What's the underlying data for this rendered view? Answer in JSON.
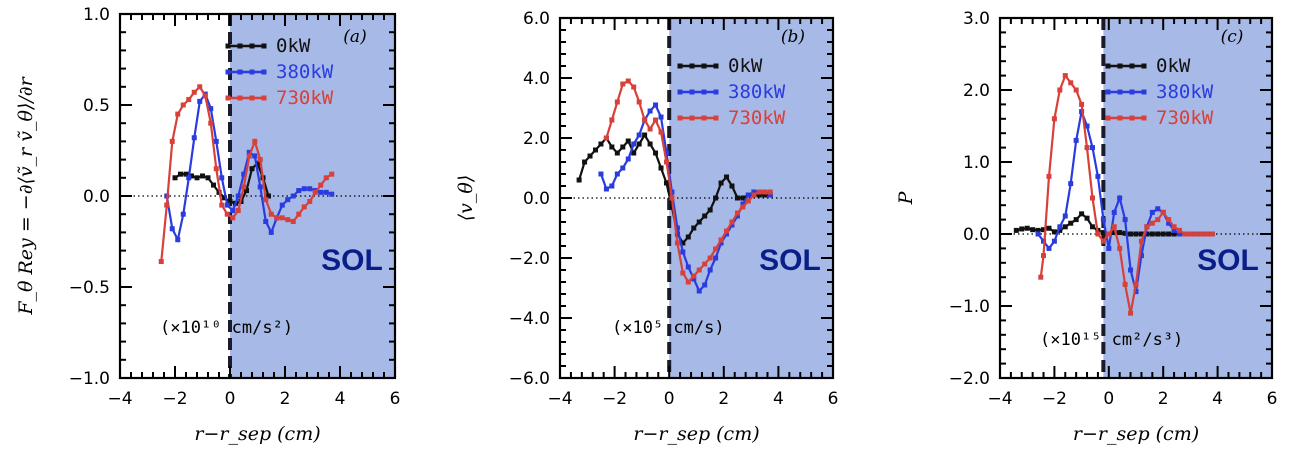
{
  "chart_data": [
    {
      "type": "line",
      "panel_label": "(a)",
      "ylabel": "F_θ Rey = −∂⟨ṽ_r ṽ_θ⟩/∂r",
      "xlabel": "r−r_sep (cm)",
      "units": "(×10¹⁰ cm/s²)",
      "region_label": "SOL",
      "xlim": [
        -4,
        6
      ],
      "ylim": [
        -1.0,
        1.0
      ],
      "xticks": [
        "−4",
        "−2",
        "0",
        "2",
        "4",
        "6"
      ],
      "yticks": [
        "1.0",
        "0.5",
        "0.0",
        "−0.5",
        "−1.0"
      ],
      "xtick_values": [
        -4,
        -2,
        0,
        2,
        4,
        6
      ],
      "ytick_values": [
        1.0,
        0.5,
        0.0,
        -0.5,
        -1.0
      ],
      "separatrix_x": 0,
      "shade_from_x": 0,
      "series": [
        {
          "name": "0kW",
          "color": "#111111",
          "x": [
            -2.0,
            -1.8,
            -1.6,
            -1.4,
            -1.2,
            -1.0,
            -0.8,
            -0.6,
            -0.4,
            -0.2,
            0.0,
            0.2,
            0.4,
            0.6,
            0.8,
            1.0,
            1.2,
            1.4
          ],
          "y": [
            0.1,
            0.12,
            0.12,
            0.11,
            0.1,
            0.11,
            0.1,
            0.06,
            0.02,
            -0.01,
            -0.03,
            -0.04,
            -0.03,
            0.03,
            0.15,
            0.18,
            0.1,
            0.0
          ]
        },
        {
          "name": "380kW",
          "color": "#2a3be0",
          "x": [
            -2.3,
            -2.1,
            -1.9,
            -1.7,
            -1.5,
            -1.3,
            -1.1,
            -0.9,
            -0.7,
            -0.5,
            -0.3,
            -0.1,
            0.1,
            0.3,
            0.5,
            0.7,
            0.9,
            1.1,
            1.3,
            1.5,
            1.7,
            1.9,
            2.1,
            2.3,
            2.5,
            2.7,
            2.9,
            3.1,
            3.3,
            3.5,
            3.7
          ],
          "y": [
            0.0,
            -0.18,
            -0.24,
            -0.1,
            0.1,
            0.32,
            0.52,
            0.56,
            0.48,
            0.3,
            0.1,
            -0.05,
            -0.08,
            0.0,
            0.12,
            0.24,
            0.22,
            0.05,
            -0.14,
            -0.2,
            -0.12,
            -0.05,
            -0.02,
            0.0,
            0.03,
            0.04,
            0.04,
            0.03,
            0.02,
            0.02,
            0.01
          ]
        },
        {
          "name": "730kW",
          "color": "#d8403a",
          "x": [
            -2.5,
            -2.3,
            -2.1,
            -1.9,
            -1.7,
            -1.5,
            -1.3,
            -1.1,
            -0.9,
            -0.7,
            -0.5,
            -0.3,
            -0.1,
            0.1,
            0.3,
            0.5,
            0.7,
            0.9,
            1.1,
            1.3,
            1.5,
            1.7,
            1.9,
            2.1,
            2.3,
            2.5,
            2.7,
            2.9,
            3.1,
            3.3,
            3.5,
            3.7
          ],
          "y": [
            -0.36,
            -0.05,
            0.3,
            0.45,
            0.5,
            0.53,
            0.57,
            0.6,
            0.55,
            0.4,
            0.15,
            -0.05,
            -0.1,
            -0.12,
            -0.08,
            0.05,
            0.22,
            0.3,
            0.2,
            -0.02,
            -0.1,
            -0.12,
            -0.12,
            -0.13,
            -0.14,
            -0.1,
            -0.06,
            -0.03,
            0.02,
            0.06,
            0.1,
            0.12
          ]
        }
      ]
    },
    {
      "type": "line",
      "panel_label": "(b)",
      "ylabel": "⟨v_θ⟩",
      "xlabel": "r−r_sep (cm)",
      "units": "(×10⁵ cm/s)",
      "region_label": "SOL",
      "xlim": [
        -4,
        6
      ],
      "ylim": [
        -6.0,
        6.0
      ],
      "xticks": [
        "−4",
        "−2",
        "0",
        "2",
        "4",
        "6"
      ],
      "yticks": [
        "6.0",
        "4.0",
        "2.0",
        "0.0",
        "−2.0",
        "−4.0",
        "−6.0"
      ],
      "xtick_values": [
        -4,
        -2,
        0,
        2,
        4,
        6
      ],
      "ytick_values": [
        6.0,
        4.0,
        2.0,
        0.0,
        -2.0,
        -4.0,
        -6.0
      ],
      "separatrix_x": 0,
      "shade_from_x": 0,
      "series": [
        {
          "name": "0kW",
          "color": "#111111",
          "x": [
            -3.3,
            -3.1,
            -2.9,
            -2.7,
            -2.5,
            -2.3,
            -2.1,
            -1.9,
            -1.7,
            -1.5,
            -1.3,
            -1.1,
            -0.9,
            -0.7,
            -0.5,
            -0.3,
            -0.1,
            0.1,
            0.3,
            0.5,
            0.7,
            0.9,
            1.1,
            1.3,
            1.5,
            1.7,
            1.9,
            2.1,
            2.3,
            2.5,
            2.7,
            2.9,
            3.1,
            3.3,
            3.5,
            3.7
          ],
          "y": [
            0.6,
            1.2,
            1.4,
            1.6,
            1.8,
            2.0,
            1.7,
            1.5,
            1.7,
            1.9,
            1.5,
            1.8,
            2.1,
            1.8,
            1.5,
            1.0,
            0.5,
            -0.3,
            -1.2,
            -1.5,
            -1.3,
            -1.0,
            -0.8,
            -0.6,
            -0.4,
            0.0,
            0.5,
            0.7,
            0.4,
            0.0,
            0.0,
            0.1,
            0.1,
            0.1,
            0.1,
            0.1
          ]
        },
        {
          "name": "380kW",
          "color": "#2a3be0",
          "x": [
            -2.5,
            -2.3,
            -2.1,
            -1.9,
            -1.7,
            -1.5,
            -1.3,
            -1.1,
            -0.9,
            -0.7,
            -0.5,
            -0.3,
            -0.1,
            0.1,
            0.3,
            0.5,
            0.7,
            0.9,
            1.1,
            1.3,
            1.5,
            1.7,
            1.9,
            2.1,
            2.3,
            2.5,
            2.7,
            2.9,
            3.1,
            3.3,
            3.5,
            3.7
          ],
          "y": [
            0.8,
            0.3,
            0.4,
            0.8,
            1.0,
            1.3,
            1.8,
            2.1,
            2.6,
            2.9,
            3.1,
            2.7,
            1.5,
            0.2,
            -1.0,
            -1.8,
            -2.3,
            -2.7,
            -3.1,
            -2.9,
            -2.4,
            -2.0,
            -1.5,
            -1.2,
            -0.9,
            -0.6,
            -0.2,
            0.1,
            0.2,
            0.2,
            0.2,
            0.1
          ]
        },
        {
          "name": "730kW",
          "color": "#d8403a",
          "x": [
            -2.3,
            -2.1,
            -1.9,
            -1.7,
            -1.5,
            -1.3,
            -1.1,
            -0.9,
            -0.7,
            -0.5,
            -0.3,
            -0.1,
            0.1,
            0.3,
            0.5,
            0.7,
            0.9,
            1.1,
            1.3,
            1.5,
            1.7,
            1.9,
            2.1,
            2.3,
            2.5,
            2.7,
            2.9,
            3.1,
            3.3,
            3.5,
            3.7
          ],
          "y": [
            2.0,
            2.6,
            3.2,
            3.8,
            3.9,
            3.7,
            3.2,
            2.6,
            2.3,
            2.6,
            2.2,
            1.2,
            0.0,
            -1.5,
            -2.5,
            -2.8,
            -2.6,
            -2.4,
            -2.2,
            -2.0,
            -1.7,
            -1.4,
            -1.1,
            -0.8,
            -0.5,
            -0.3,
            -0.1,
            0.1,
            0.2,
            0.2,
            0.2
          ]
        }
      ]
    },
    {
      "type": "line",
      "panel_label": "(c)",
      "ylabel": "P",
      "xlabel": "r−r_sep (cm)",
      "units": "(×10¹⁵ cm²/s³)",
      "region_label": "SOL",
      "xlim": [
        -4,
        6
      ],
      "ylim": [
        -2.0,
        3.0
      ],
      "xticks": [
        "−4",
        "−2",
        "0",
        "2",
        "4",
        "6"
      ],
      "yticks": [
        "3.0",
        "2.0",
        "1.0",
        "0.0",
        "−1.0",
        "−2.0"
      ],
      "xtick_values": [
        -4,
        -2,
        0,
        2,
        4,
        6
      ],
      "ytick_values": [
        3.0,
        2.0,
        1.0,
        0.0,
        -1.0,
        -2.0
      ],
      "separatrix_x": -0.2,
      "shade_from_x": -0.2,
      "series": [
        {
          "name": "0kW",
          "color": "#111111",
          "x": [
            -3.4,
            -3.2,
            -3.0,
            -2.8,
            -2.6,
            -2.4,
            -2.2,
            -2.0,
            -1.8,
            -1.6,
            -1.4,
            -1.2,
            -1.0,
            -0.8,
            -0.6,
            -0.4,
            -0.2,
            0.0,
            0.2,
            0.4,
            0.6,
            0.8,
            1.0,
            1.2,
            1.4,
            1.6,
            1.8,
            2.0,
            2.2,
            2.4,
            2.6,
            2.8,
            3.0,
            3.2,
            3.4,
            3.6,
            3.8
          ],
          "y": [
            0.05,
            0.07,
            0.08,
            0.06,
            0.05,
            0.06,
            0.08,
            0.03,
            0.05,
            0.1,
            0.15,
            0.2,
            0.28,
            0.22,
            0.1,
            0.05,
            0.02,
            0.0,
            0.02,
            0.02,
            0.01,
            0.0,
            0.0,
            0.0,
            0.0,
            0.0,
            0.0,
            0.0,
            0.0,
            0.0,
            0.0,
            0.0,
            0.0,
            0.0,
            0.0,
            0.0,
            0.0
          ]
        },
        {
          "name": "380kW",
          "color": "#2a3be0",
          "x": [
            -2.6,
            -2.4,
            -2.2,
            -2.0,
            -1.8,
            -1.6,
            -1.4,
            -1.2,
            -1.0,
            -0.8,
            -0.6,
            -0.4,
            -0.2,
            0.0,
            0.2,
            0.4,
            0.6,
            0.8,
            1.0,
            1.2,
            1.4,
            1.6,
            1.8,
            2.0,
            2.2,
            2.4,
            2.6,
            2.8,
            3.0,
            3.2,
            3.4,
            3.6,
            3.8
          ],
          "y": [
            0.0,
            -0.1,
            -0.2,
            -0.1,
            0.1,
            0.25,
            0.7,
            1.3,
            1.7,
            1.5,
            1.2,
            0.8,
            0.2,
            -0.2,
            0.3,
            0.5,
            0.2,
            -0.5,
            -0.8,
            -0.3,
            0.1,
            0.3,
            0.35,
            0.3,
            0.15,
            0.05,
            0.0,
            0.0,
            0.0,
            0.0,
            0.0,
            0.0,
            0.0
          ]
        },
        {
          "name": "730kW",
          "color": "#d8403a",
          "x": [
            -2.5,
            -2.4,
            -2.2,
            -2.0,
            -1.8,
            -1.6,
            -1.4,
            -1.2,
            -1.0,
            -0.8,
            -0.6,
            -0.4,
            -0.2,
            0.0,
            0.2,
            0.4,
            0.6,
            0.8,
            1.0,
            1.2,
            1.4,
            1.6,
            1.8,
            2.0,
            2.2,
            2.4,
            2.6,
            2.8,
            3.0,
            3.2,
            3.4,
            3.6,
            3.8
          ],
          "y": [
            -0.6,
            -0.3,
            0.8,
            1.6,
            2.0,
            2.2,
            2.1,
            2.0,
            1.8,
            1.2,
            0.5,
            0.0,
            -0.1,
            0.0,
            0.1,
            -0.2,
            -0.7,
            -1.1,
            -0.7,
            -0.1,
            0.1,
            0.15,
            0.2,
            0.3,
            0.2,
            0.1,
            0.05,
            0.0,
            0.0,
            0.0,
            0.0,
            0.0,
            0.0
          ]
        }
      ]
    }
  ]
}
